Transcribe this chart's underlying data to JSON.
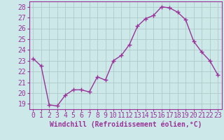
{
  "x": [
    0,
    1,
    2,
    3,
    4,
    5,
    6,
    7,
    8,
    9,
    10,
    11,
    12,
    13,
    14,
    15,
    16,
    17,
    18,
    19,
    20,
    21,
    22,
    23
  ],
  "y": [
    23.2,
    22.5,
    18.9,
    18.8,
    19.8,
    20.3,
    20.3,
    20.1,
    21.5,
    21.2,
    23.0,
    23.5,
    24.5,
    26.2,
    26.9,
    27.2,
    28.0,
    27.9,
    27.5,
    26.8,
    24.8,
    23.8,
    23.0,
    21.7
  ],
  "line_color": "#993399",
  "marker": "+",
  "markersize": 4,
  "linewidth": 1.0,
  "bg_color": "#cce8e8",
  "grid_color": "#b0c8c8",
  "xlabel": "Windchill (Refroidissement éolien,°C)",
  "xlabel_fontsize": 7,
  "tick_fontsize": 7,
  "ylim": [
    18.5,
    28.5
  ],
  "xlim": [
    -0.5,
    23.5
  ],
  "yticks": [
    19,
    20,
    21,
    22,
    23,
    24,
    25,
    26,
    27,
    28
  ],
  "xticks": [
    0,
    1,
    2,
    3,
    4,
    5,
    6,
    7,
    8,
    9,
    10,
    11,
    12,
    13,
    14,
    15,
    16,
    17,
    18,
    19,
    20,
    21,
    22,
    23
  ],
  "xtick_labels": [
    "0",
    "1",
    "2",
    "3",
    "4",
    "5",
    "6",
    "7",
    "8",
    "9",
    "10",
    "11",
    "12",
    "13",
    "14",
    "15",
    "16",
    "17",
    "18",
    "19",
    "20",
    "21",
    "22",
    "23"
  ],
  "axis_label_color": "#993399",
  "tick_color": "#993399",
  "spine_color": "#993399"
}
